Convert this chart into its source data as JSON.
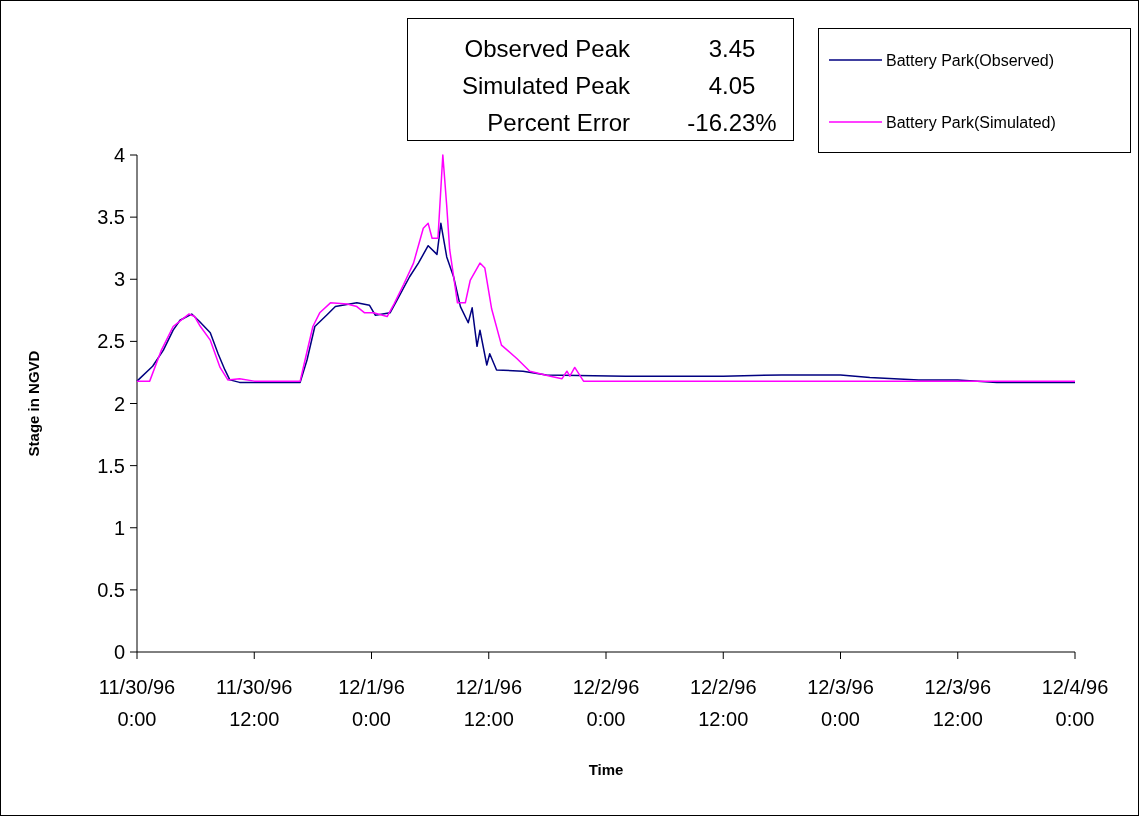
{
  "chart_data": {
    "type": "line",
    "xlabel": "Time",
    "ylabel": "Stage in NGVD",
    "xlim": [
      "1996-11-30T00:00",
      "1996-12-04T00:00"
    ],
    "ylim": [
      0,
      4
    ],
    "xticks": [
      {
        "value": "1996-11-30T00:00",
        "label": "11/30/96\n0:00"
      },
      {
        "value": "1996-11-30T12:00",
        "label": "11/30/96\n12:00"
      },
      {
        "value": "1996-12-01T00:00",
        "label": "12/1/96\n0:00"
      },
      {
        "value": "1996-12-01T12:00",
        "label": "12/1/96\n12:00"
      },
      {
        "value": "1996-12-02T00:00",
        "label": "12/2/96\n0:00"
      },
      {
        "value": "1996-12-02T12:00",
        "label": "12/2/96\n12:00"
      },
      {
        "value": "1996-12-03T00:00",
        "label": "12/3/96\n0:00"
      },
      {
        "value": "1996-12-03T12:00",
        "label": "12/3/96\n12:00"
      },
      {
        "value": "1996-12-04T00:00",
        "label": "12/4/96\n0:00"
      }
    ],
    "yticks": [
      0,
      0.5,
      1,
      1.5,
      2,
      2.5,
      3,
      3.5,
      4
    ],
    "grid": false,
    "legend": "top right",
    "marker": "none",
    "line_style": "solid",
    "annotations": [
      "Observed Peak",
      "3.45",
      "Simulated Peak",
      "4.05",
      "Percent Error",
      "-16.23%"
    ],
    "series": [
      {
        "name": "Battery Park(Observed)",
        "color": "#000080",
        "x": [
          "1996-11-30T00:00",
          "1996-11-30T01:36",
          "1996-11-30T02:42",
          "1996-11-30T03:42",
          "1996-11-30T04:24",
          "1996-11-30T05:36",
          "1996-11-30T06:24",
          "1996-11-30T07:30",
          "1996-11-30T08:18",
          "1996-11-30T09:00",
          "1996-11-30T09:30",
          "1996-11-30T10:30",
          "1996-11-30T16:42",
          "1996-11-30T17:24",
          "1996-11-30T18:12",
          "1996-11-30T19:24",
          "1996-11-30T20:18",
          "1996-11-30T22:30",
          "1996-11-30T23:48",
          "1996-12-01T00:24",
          "1996-12-01T01:54",
          "1996-12-01T02:36",
          "1996-12-01T03:54",
          "1996-12-01T04:48",
          "1996-12-01T05:48",
          "1996-12-01T06:42",
          "1996-12-01T07:06",
          "1996-12-01T07:42",
          "1996-12-01T08:24",
          "1996-12-01T09:06",
          "1996-12-01T09:54",
          "1996-12-01T10:18",
          "1996-12-01T10:48",
          "1996-12-01T11:06",
          "1996-12-01T11:48",
          "1996-12-01T12:06",
          "1996-12-01T12:48",
          "1996-12-01T15:30",
          "1996-12-01T17:54",
          "1996-12-02T02:00",
          "1996-12-02T12:00",
          "1996-12-02T18:00",
          "1996-12-03T00:00",
          "1996-12-03T03:00",
          "1996-12-03T08:00",
          "1996-12-03T12:00",
          "1996-12-03T16:00",
          "1996-12-04T00:00"
        ],
        "values": [
          2.18,
          2.3,
          2.43,
          2.59,
          2.67,
          2.72,
          2.66,
          2.57,
          2.4,
          2.27,
          2.19,
          2.17,
          2.17,
          2.35,
          2.62,
          2.71,
          2.78,
          2.81,
          2.79,
          2.71,
          2.73,
          2.83,
          3.02,
          3.13,
          3.27,
          3.2,
          3.45,
          3.18,
          3.02,
          2.78,
          2.65,
          2.77,
          2.46,
          2.59,
          2.31,
          2.4,
          2.27,
          2.26,
          2.23,
          2.22,
          2.22,
          2.23,
          2.23,
          2.21,
          2.19,
          2.19,
          2.17,
          2.17
        ]
      },
      {
        "name": "Battery Park(Simulated)",
        "color": "#ff00ff",
        "x": [
          "1996-11-30T00:00",
          "1996-11-30T01:18",
          "1996-11-30T02:30",
          "1996-11-30T03:42",
          "1996-11-30T05:18",
          "1996-11-30T05:54",
          "1996-11-30T06:24",
          "1996-11-30T07:30",
          "1996-11-30T08:30",
          "1996-11-30T09:18",
          "1996-11-30T10:30",
          "1996-11-30T12:00",
          "1996-11-30T16:42",
          "1996-11-30T17:12",
          "1996-11-30T18:00",
          "1996-11-30T18:42",
          "1996-11-30T19:48",
          "1996-11-30T21:30",
          "1996-11-30T22:30",
          "1996-11-30T23:18",
          "1996-12-01T00:12",
          "1996-12-01T01:36",
          "1996-12-01T02:18",
          "1996-12-01T03:18",
          "1996-12-01T04:18",
          "1996-12-01T05:18",
          "1996-12-01T05:48",
          "1996-12-01T06:12",
          "1996-12-01T06:48",
          "1996-12-01T07:18",
          "1996-12-01T07:42",
          "1996-12-01T08:00",
          "1996-12-01T08:48",
          "1996-12-01T09:36",
          "1996-12-01T10:06",
          "1996-12-01T11:06",
          "1996-12-01T11:36",
          "1996-12-01T12:18",
          "1996-12-01T13:18",
          "1996-12-01T14:54",
          "1996-12-01T16:12",
          "1996-12-01T18:18",
          "1996-12-01T19:30",
          "1996-12-01T20:00",
          "1996-12-01T20:18",
          "1996-12-01T20:48",
          "1996-12-01T21:42",
          "1996-12-04T00:00"
        ],
        "values": [
          2.18,
          2.18,
          2.43,
          2.62,
          2.72,
          2.7,
          2.63,
          2.51,
          2.29,
          2.19,
          2.2,
          2.18,
          2.18,
          2.35,
          2.62,
          2.73,
          2.81,
          2.8,
          2.78,
          2.73,
          2.73,
          2.7,
          2.8,
          2.96,
          3.13,
          3.41,
          3.45,
          3.33,
          3.33,
          4.0,
          3.59,
          3.24,
          2.81,
          2.81,
          2.99,
          3.13,
          3.09,
          2.76,
          2.47,
          2.36,
          2.26,
          2.22,
          2.2,
          2.26,
          2.22,
          2.29,
          2.18,
          2.18
        ]
      }
    ]
  }
}
